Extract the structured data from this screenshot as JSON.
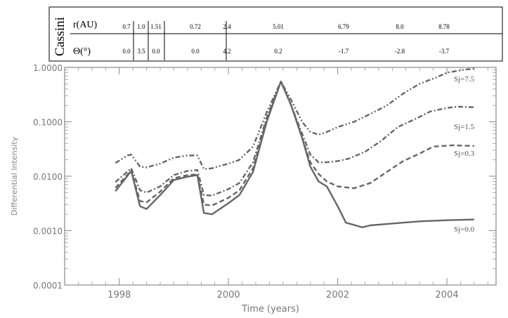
{
  "header_table": {
    "spacecraft": "Cassini",
    "rows": [
      {
        "label": "r(AU)",
        "values": [
          "0.7",
          "1.0",
          "1.51",
          "0.72",
          "2.4",
          "5.01",
          "6.79",
          "8.0",
          "8.78"
        ]
      },
      {
        "label": "Θ(°)",
        "values": [
          "0.0",
          "3.5",
          "0.0",
          "0.0",
          "4.2",
          "0.2",
          "-1.7",
          "-2.8",
          "-3.7"
        ]
      }
    ]
  },
  "chart_data": {
    "type": "line",
    "xlabel": "Time (years)",
    "ylabel": "Differential Intensity",
    "xlim": [
      1997.0,
      2004.9
    ],
    "ylim": [
      0.0001,
      1.0
    ],
    "yscale": "log",
    "x_ticks": [
      "1998",
      "2000",
      "2002",
      "2004"
    ],
    "y_ticks": [
      "0.0001",
      "0.0010",
      "0.0100",
      "0.1000",
      "1.0000"
    ],
    "grid": false,
    "series": [
      {
        "name": "Sj=0.0",
        "dash": "solid",
        "points": [
          [
            1997.93,
            0.0053
          ],
          [
            1998.22,
            0.0125
          ],
          [
            1998.38,
            0.0028
          ],
          [
            1998.5,
            0.0025
          ],
          [
            1998.75,
            0.0045
          ],
          [
            1999.0,
            0.0085
          ],
          [
            1999.25,
            0.0098
          ],
          [
            1999.43,
            0.0105
          ],
          [
            1999.55,
            0.0021
          ],
          [
            1999.7,
            0.002
          ],
          [
            2000.0,
            0.0032
          ],
          [
            2000.2,
            0.0045
          ],
          [
            2000.45,
            0.012
          ],
          [
            2000.7,
            0.1
          ],
          [
            2000.96,
            0.55
          ],
          [
            2001.15,
            0.2
          ],
          [
            2001.35,
            0.05
          ],
          [
            2001.5,
            0.015
          ],
          [
            2001.65,
            0.008
          ],
          [
            2001.8,
            0.0065
          ],
          [
            2002.0,
            0.0028
          ],
          [
            2002.15,
            0.0014
          ],
          [
            2002.45,
            0.00115
          ],
          [
            2002.6,
            0.00125
          ],
          [
            2003.0,
            0.00135
          ],
          [
            2003.5,
            0.00148
          ],
          [
            2004.0,
            0.00155
          ],
          [
            2004.5,
            0.0016
          ]
        ]
      },
      {
        "name": "Sj=0.3",
        "dash": "dashed",
        "points": [
          [
            1997.93,
            0.0061
          ],
          [
            1998.22,
            0.0128
          ],
          [
            1998.38,
            0.0035
          ],
          [
            1998.5,
            0.0033
          ],
          [
            1998.75,
            0.0052
          ],
          [
            1999.0,
            0.0092
          ],
          [
            1999.25,
            0.0105
          ],
          [
            1999.43,
            0.0108
          ],
          [
            1999.55,
            0.003
          ],
          [
            1999.7,
            0.0029
          ],
          [
            2000.0,
            0.004
          ],
          [
            2000.2,
            0.0055
          ],
          [
            2000.45,
            0.014
          ],
          [
            2000.7,
            0.11
          ],
          [
            2000.96,
            0.55
          ],
          [
            2001.15,
            0.2
          ],
          [
            2001.35,
            0.05
          ],
          [
            2001.5,
            0.018
          ],
          [
            2001.65,
            0.011
          ],
          [
            2001.8,
            0.008
          ],
          [
            2002.0,
            0.0065
          ],
          [
            2002.3,
            0.006
          ],
          [
            2002.6,
            0.0075
          ],
          [
            2002.9,
            0.012
          ],
          [
            2003.2,
            0.019
          ],
          [
            2003.5,
            0.026
          ],
          [
            2003.75,
            0.035
          ],
          [
            2004.1,
            0.037
          ],
          [
            2004.5,
            0.036
          ]
        ]
      },
      {
        "name": "Sj=1.5",
        "dash": "dashdot",
        "points": [
          [
            1997.93,
            0.0078
          ],
          [
            1998.22,
            0.014
          ],
          [
            1998.38,
            0.0055
          ],
          [
            1998.5,
            0.005
          ],
          [
            1998.75,
            0.0065
          ],
          [
            1999.0,
            0.0105
          ],
          [
            1999.25,
            0.0125
          ],
          [
            1999.43,
            0.013
          ],
          [
            1999.55,
            0.0045
          ],
          [
            1999.7,
            0.0044
          ],
          [
            2000.0,
            0.0058
          ],
          [
            2000.2,
            0.0075
          ],
          [
            2000.45,
            0.018
          ],
          [
            2000.7,
            0.12
          ],
          [
            2000.96,
            0.55
          ],
          [
            2001.15,
            0.2
          ],
          [
            2001.35,
            0.06
          ],
          [
            2001.5,
            0.025
          ],
          [
            2001.65,
            0.018
          ],
          [
            2001.8,
            0.018
          ],
          [
            2002.0,
            0.019
          ],
          [
            2002.2,
            0.021
          ],
          [
            2002.5,
            0.028
          ],
          [
            2002.8,
            0.045
          ],
          [
            2003.1,
            0.08
          ],
          [
            2003.4,
            0.11
          ],
          [
            2003.7,
            0.155
          ],
          [
            2004.0,
            0.18
          ],
          [
            2004.2,
            0.19
          ],
          [
            2004.5,
            0.185
          ]
        ]
      },
      {
        "name": "Sj=7.5",
        "dash": "dashdotdot",
        "points": [
          [
            1997.93,
            0.0175
          ],
          [
            1998.15,
            0.024
          ],
          [
            1998.22,
            0.025
          ],
          [
            1998.38,
            0.015
          ],
          [
            1998.5,
            0.0145
          ],
          [
            1998.75,
            0.017
          ],
          [
            1999.0,
            0.022
          ],
          [
            1999.25,
            0.024
          ],
          [
            1999.43,
            0.024
          ],
          [
            1999.55,
            0.0135
          ],
          [
            1999.7,
            0.014
          ],
          [
            2000.0,
            0.017
          ],
          [
            2000.2,
            0.02
          ],
          [
            2000.45,
            0.035
          ],
          [
            2000.7,
            0.15
          ],
          [
            2000.96,
            0.55
          ],
          [
            2001.15,
            0.25
          ],
          [
            2001.35,
            0.1
          ],
          [
            2001.5,
            0.065
          ],
          [
            2001.65,
            0.058
          ],
          [
            2001.8,
            0.065
          ],
          [
            2002.0,
            0.08
          ],
          [
            2002.3,
            0.1
          ],
          [
            2002.6,
            0.14
          ],
          [
            2002.9,
            0.2
          ],
          [
            2003.2,
            0.33
          ],
          [
            2003.5,
            0.5
          ],
          [
            2003.8,
            0.65
          ],
          [
            2004.0,
            0.8
          ],
          [
            2004.3,
            0.9
          ],
          [
            2004.5,
            0.95
          ]
        ]
      }
    ],
    "series_labels": [
      "Sj=7.5",
      "Sj=1.5",
      "Sj=0.3",
      "Sj=0.0"
    ]
  }
}
